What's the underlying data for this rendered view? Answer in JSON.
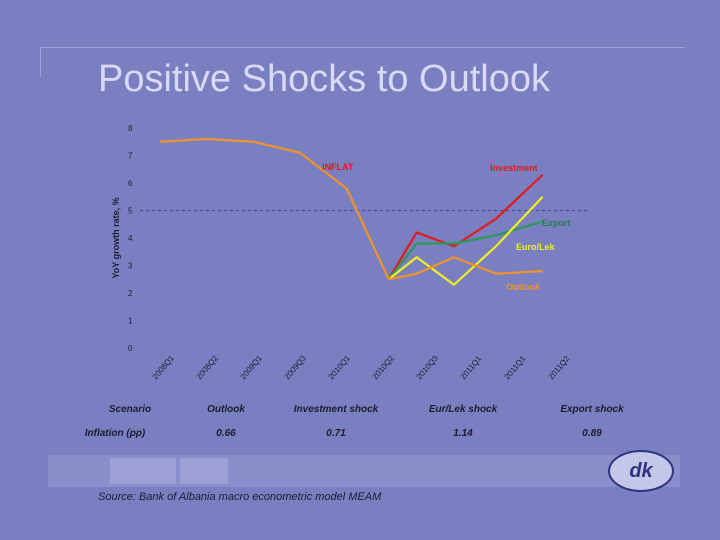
{
  "page": {
    "title": "Positive Shocks to Outlook"
  },
  "chart_data": {
    "type": "line",
    "title": "Positive Shocks to Outlook",
    "ylabel": "YoY growth rate, %",
    "xlabel": "",
    "ylim": [
      0,
      8
    ],
    "yticks": [
      0,
      1,
      2,
      3,
      4,
      5,
      6,
      7,
      8
    ],
    "categories": [
      "2008Q1",
      "2008Q2",
      "2009Q1",
      "2009Q3",
      "2010Q1",
      "2010Q2",
      "2010Q3",
      "2011Q1",
      "2011Q1",
      "2011Q2"
    ],
    "category_labels": [
      "2008Q1",
      "2008Q2",
      "2009Q1",
      "2009Q3",
      "2010Q1",
      "2010Q2",
      "2010Q3",
      "2011Q1",
      "2011Q1",
      "2011Q2"
    ],
    "x": [
      0,
      1,
      2,
      3,
      4,
      4.9,
      5,
      5.5,
      6,
      6.5,
      7,
      7.5,
      8.3
    ],
    "target_line": {
      "value": 5,
      "style": "dashed",
      "color": "#3a4a9a"
    },
    "series": [
      {
        "name": "INFLAT",
        "color": "#f0922a",
        "label": "INFLAT",
        "points": [
          [
            0,
            7.5
          ],
          [
            1,
            7.6
          ],
          [
            2,
            7.5
          ],
          [
            3,
            7.1
          ],
          [
            4,
            5.8
          ],
          [
            4.9,
            2.5
          ]
        ]
      },
      {
        "name": "Investment",
        "color": "#e21a1a",
        "label": "Investment",
        "points": [
          [
            4.9,
            2.5
          ],
          [
            5.5,
            4.2
          ],
          [
            6.3,
            3.7
          ],
          [
            7.2,
            4.7
          ],
          [
            8.2,
            6.3
          ]
        ]
      },
      {
        "name": "Export",
        "color": "#2a9a5a",
        "label": "Export",
        "points": [
          [
            4.9,
            2.5
          ],
          [
            5.5,
            3.8
          ],
          [
            6.3,
            3.8
          ],
          [
            7.2,
            4.1
          ],
          [
            8.2,
            4.6
          ]
        ]
      },
      {
        "name": "Euro/Lek",
        "color": "#f0f020",
        "label": "Euro/Lek",
        "points": [
          [
            4.9,
            2.5
          ],
          [
            5.5,
            3.3
          ],
          [
            6.3,
            2.3
          ],
          [
            7.2,
            3.7
          ],
          [
            8.2,
            5.5
          ]
        ]
      },
      {
        "name": "Outlook",
        "color": "#f0922a",
        "label": "Outlook",
        "points": [
          [
            4.9,
            2.5
          ],
          [
            5.5,
            2.7
          ],
          [
            6.3,
            3.3
          ],
          [
            7.2,
            2.7
          ],
          [
            8.2,
            2.8
          ]
        ]
      }
    ]
  },
  "table": {
    "header": [
      "Scenario",
      "Outlook",
      "Investment shock",
      "Eur/Lek shock",
      "Export shock"
    ],
    "row": [
      "Inflation (pp)",
      "0.66",
      "0.71",
      "1.14",
      "0.89"
    ]
  },
  "footer": {
    "source": "Source: Bank of Albania macro econometric model MEAM",
    "logo_text": "dk"
  }
}
